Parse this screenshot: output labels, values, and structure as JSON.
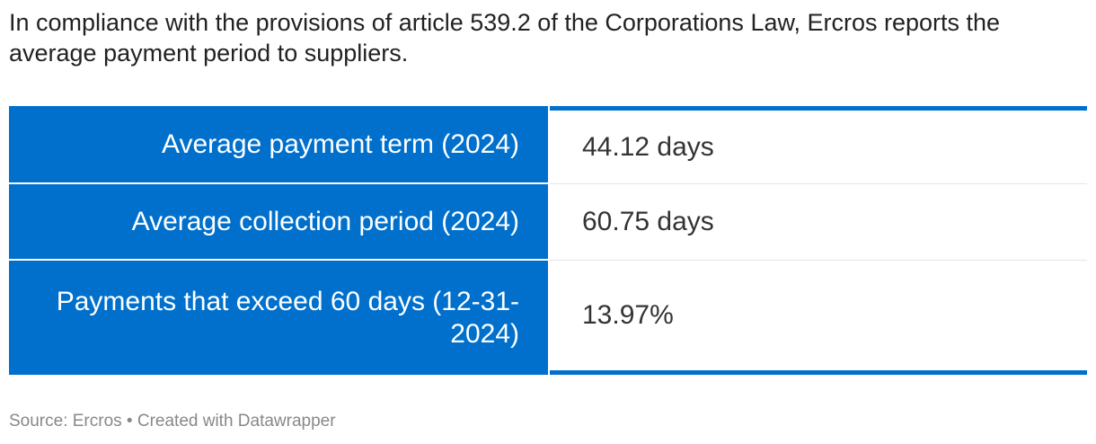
{
  "intro": "In compliance with the provisions of article 539.2 of the Corporations Law, Ercros reports the average payment period to suppliers.",
  "table": {
    "rows": [
      [
        "Average payment term (2024)",
        "44.12 days"
      ],
      [
        "Average collection period (2024)",
        "60.75 days"
      ],
      [
        "Payments that exceed 60 days (12-31-2024)",
        "13.97%"
      ]
    ]
  },
  "footer": "Source: Ercros • Created with Datawrapper"
}
